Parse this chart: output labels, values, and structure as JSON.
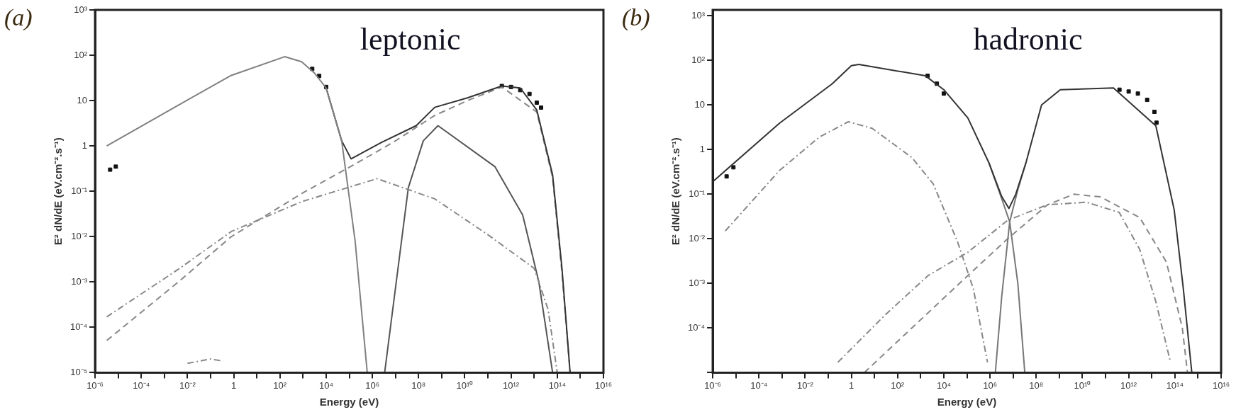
{
  "chart_data": [
    {
      "type": "line",
      "title": "(a)",
      "annotations": [
        "leptonic"
      ],
      "xlabel": "Energy (eV)",
      "ylabel": "E² dN/dE (eV.cm⁻².s⁻¹)",
      "log": "xy",
      "xlim": [
        1e-06,
        1e+16
      ],
      "ylim": [
        1e-05,
        1000
      ],
      "xticks": [
        {
          "value": 1e-06,
          "label": "10⁻⁶"
        },
        {
          "value": 1e-05,
          "label": null
        },
        {
          "value": 0.0001,
          "label": "10⁻⁴"
        },
        {
          "value": 0.001,
          "label": null
        },
        {
          "value": 0.01,
          "label": "10⁻²"
        },
        {
          "value": 0.1,
          "label": null
        },
        1,
        {
          "value": 10,
          "label": null
        },
        {
          "value": 100,
          "label": "10²"
        },
        {
          "value": 1000,
          "label": null
        },
        {
          "value": 10000.0,
          "label": "10⁴"
        },
        {
          "value": 100000.0,
          "label": null
        },
        {
          "value": 1000000.0,
          "label": "10⁶"
        },
        {
          "value": 10000000.0,
          "label": null
        },
        {
          "value": 100000000.0,
          "label": "10⁸"
        },
        {
          "value": 1000000000.0,
          "label": null
        },
        {
          "value": 10000000000.0,
          "label": "10¹⁰"
        },
        {
          "value": 100000000000.0,
          "label": null
        },
        {
          "value": 1000000000000.0,
          "label": "10¹²"
        },
        {
          "value": 10000000000000.0,
          "label": null
        },
        {
          "value": 100000000000000.0,
          "label": "10¹⁴"
        },
        {
          "value": 1000000000000000.0,
          "label": null
        },
        {
          "value": 1e+16,
          "label": "10¹⁶"
        }
      ],
      "yticks": [
        {
          "value": 1e-05,
          "label": "10⁻⁵"
        },
        {
          "value": 0.0001,
          "label": "10⁻⁴"
        },
        {
          "value": 0.001,
          "label": "10⁻³"
        },
        {
          "value": 0.01,
          "label": "10⁻²"
        },
        {
          "value": 0.1,
          "label": "10⁻¹"
        },
        {
          "value": 1,
          "label": "1"
        },
        {
          "value": 10,
          "label": "10"
        },
        {
          "value": 100,
          "label": "10²"
        },
        {
          "value": 1000,
          "label": "10³"
        }
      ],
      "series": [
        {
          "color": "#808080",
          "line_style": "solid",
          "x": [
            3.2e-06,
            0.004,
            0.79,
            160,
            870,
            3200,
            10000.0,
            47000.0,
            180000.0,
            600000.0
          ],
          "values": [
            1,
            7.9,
            36,
            93,
            72,
            40,
            19,
            1.3,
            0.0079,
            1e-05
          ]
        },
        {
          "color": "#333333",
          "line_style": "solid",
          "x": [
            10000.0,
            47000.0,
            120000.0,
            2500000.0,
            79000000.0,
            500000000.0,
            13000000000.0,
            400000000000.0,
            2500000000000.0,
            13000000000000.0,
            63000000000000.0,
            160000000000000.0,
            360000000000000.0
          ],
          "values": [
            19,
            1.3,
            0.52,
            1.2,
            2.8,
            7.1,
            11.5,
            21,
            19,
            6.2,
            0.23,
            0.002,
            1e-05
          ]
        },
        {
          "color": "#888888",
          "line_style": "dashed",
          "x": [
            3.2e-06,
            0.004,
            0.79,
            870,
            180000.0,
            7900000.0,
            500000000.0,
            13000000000.0,
            400000000000.0,
            13000000000000.0,
            63000000000000.0,
            160000000000000.0,
            360000000000000.0
          ],
          "values": [
            5.1e-05,
            0.001,
            0.01,
            0.089,
            0.4,
            1.2,
            4.7,
            10,
            20,
            5.6,
            0.2,
            0.0016,
            1e-05
          ]
        },
        {
          "color": "#888888",
          "line_style": "dotted",
          "x": [
            3.2e-06,
            0.004,
            0.79,
            870,
            1600000.0,
            500000000.0,
            100000000000.0,
            10000000000000.0,
            40000000000000.0,
            100000000000000.0
          ],
          "values": [
            0.00017,
            0.0019,
            0.013,
            0.059,
            0.19,
            0.068,
            0.011,
            0.002,
            0.00025,
            1e-05
          ]
        },
        {
          "color": "#555555",
          "line_style": "solid",
          "x": [
            3400000.0,
            36000000.0,
            160000000.0,
            690000000.0,
            200000000000.0,
            3200000000000.0,
            16000000000000.0,
            63000000000000.0
          ],
          "values": [
            1e-05,
            0.12,
            1.3,
            2.8,
            0.35,
            0.03,
            0.001,
            1e-05
          ]
        },
        {
          "color": "#888888",
          "line_style": "dotted",
          "x": [
            0.01,
            0.1,
            0.35
          ],
          "values": [
            1.6e-05,
            2e-05,
            1.8e-05
          ]
        },
        {
          "type": "scatter",
          "color": "#111111",
          "marker": "square",
          "x": [
            4.5e-06,
            7.9e-06,
            2500,
            5000,
            10000.0,
            400000000000.0,
            1000000000000.0,
            2500000000000.0,
            6300000000000.0,
            13000000000000.0,
            20000000000000.0
          ],
          "values": [
            0.3,
            0.35,
            50,
            35,
            20,
            21,
            20,
            17,
            14,
            9,
            7
          ]
        }
      ]
    },
    {
      "type": "line",
      "title": "(b)",
      "annotations": [
        "hadronic"
      ],
      "xlabel": "Energy (eV)",
      "ylabel": "E² dN/dE (eV.cm⁻².s⁻¹)",
      "log": "xy",
      "xlim": [
        1e-06,
        1e+16
      ],
      "ylim": [
        1e-05,
        1350
      ],
      "xticks": [
        {
          "value": 1e-06,
          "label": "10⁻⁶"
        },
        {
          "value": 1e-05,
          "label": null
        },
        {
          "value": 0.0001,
          "label": "10⁻⁴"
        },
        {
          "value": 0.001,
          "label": null
        },
        {
          "value": 0.01,
          "label": "10⁻²"
        },
        {
          "value": 0.1,
          "label": null
        },
        1,
        {
          "value": 10,
          "label": null
        },
        {
          "value": 100,
          "label": "10²"
        },
        {
          "value": 1000,
          "label": null
        },
        {
          "value": 10000.0,
          "label": "10⁴"
        },
        {
          "value": 100000.0,
          "label": null
        },
        {
          "value": 1000000.0,
          "label": "10⁶"
        },
        {
          "value": 10000000.0,
          "label": null
        },
        {
          "value": 100000000.0,
          "label": "10⁸"
        },
        {
          "value": 1000000000.0,
          "label": null
        },
        {
          "value": 10000000000.0,
          "label": "10¹⁰"
        },
        {
          "value": 100000000000.0,
          "label": null
        },
        {
          "value": 1000000000000.0,
          "label": "10¹²"
        },
        {
          "value": 10000000000000.0,
          "label": null
        },
        {
          "value": 100000000000000.0,
          "label": "10¹⁴"
        },
        {
          "value": 1000000000000000.0,
          "label": null
        },
        {
          "value": 1e+16,
          "label": "10¹⁶"
        }
      ],
      "yticks": [
        {
          "value": 1e-05,
          "label": null
        },
        {
          "value": 0.0001,
          "label": "10⁻⁴"
        },
        {
          "value": 0.001,
          "label": "10⁻³"
        },
        {
          "value": 0.01,
          "label": "10⁻²"
        },
        {
          "value": 0.1,
          "label": "10⁻¹"
        },
        {
          "value": 1,
          "label": "1"
        },
        {
          "value": 10,
          "label": "10"
        },
        {
          "value": 100,
          "label": "10²"
        },
        {
          "value": 1000,
          "label": "10³"
        }
      ],
      "series": [
        {
          "color": "#333333",
          "line_style": "solid",
          "x": [
            1e-06,
            0.00078,
            0.15,
            1,
            2.1,
            1600,
            10000.0,
            110000.0,
            890000.0,
            3200000.0,
            6600000.0,
            13000000.0,
            36000000.0,
            170000000.0,
            1100000000.0,
            220000000000.0,
            15000000000000.0,
            93000000000000.0,
            230000000000000.0,
            540000000000000.0
          ],
          "values": [
            0.19,
            3.9,
            30,
            76,
            81,
            45,
            22,
            5.1,
            0.51,
            0.089,
            0.048,
            0.1,
            0.51,
            10,
            22,
            24,
            3.4,
            0.045,
            0.00079,
            1e-05
          ]
        },
        {
          "color": "#777777",
          "line_style": "solid",
          "x": [
            890000.0,
            3200000.0,
            7100000.0,
            16000000.0,
            32000000.0
          ],
          "values": [
            0.51,
            0.079,
            0.024,
            0.001,
            1e-05
          ]
        },
        {
          "color": "#777777",
          "line_style": "solid",
          "x": [
            1700000.0,
            3200000.0,
            7100000.0,
            16000000.0,
            36000000.0
          ],
          "values": [
            1e-05,
            0.0005,
            0.024,
            0.126,
            0.51
          ]
        },
        {
          "color": "#888888",
          "line_style": "dotted",
          "x": [
            3.5e-06,
            0.00078,
            0.041,
            0.74,
            7.9,
            420,
            3500,
            39000.0,
            190000.0,
            780000.0
          ],
          "values": [
            0.015,
            0.34,
            1.9,
            4.2,
            3,
            0.66,
            0.17,
            0.0087,
            0.00076,
            1.7e-05
          ]
        },
        {
          "color": "#888888",
          "line_style": "dotted",
          "x": [
            0.26,
            30,
            2100,
            110000.0,
            5800000.0,
            310000000.0,
            15000000000.0,
            390000000000.0,
            3000000000000.0,
            15000000000000.0,
            65000000000000.0
          ],
          "values": [
            1.7e-05,
            0.0002,
            0.0015,
            0.005,
            0.026,
            0.058,
            0.066,
            0.039,
            0.0058,
            0.00039,
            1.7e-05
          ]
        },
        {
          "color": "#888888",
          "line_style": "dashed",
          "x": [
            3.6,
            2100,
            110000.0,
            5800000.0,
            310000000.0,
            4300000000.0,
            59000000000.0,
            3000000000000.0,
            43000000000000.0,
            210000000000000.0,
            350000000000000.0
          ],
          "values": [
            1e-05,
            0.00022,
            0.0015,
            0.01,
            0.058,
            0.1,
            0.087,
            0.03,
            0.003,
            0.0001,
            1e-05
          ]
        },
        {
          "type": "scatter",
          "color": "#111111",
          "marker": "square",
          "x": [
            4e-06,
            7.9e-06,
            2000,
            5000,
            10000.0,
            400000000000.0,
            1000000000000.0,
            2500000000000.0,
            6300000000000.0,
            13000000000000.0,
            16000000000000.0
          ],
          "values": [
            0.25,
            0.4,
            45,
            30,
            18,
            22,
            20,
            18,
            13,
            7,
            4
          ]
        }
      ]
    }
  ]
}
